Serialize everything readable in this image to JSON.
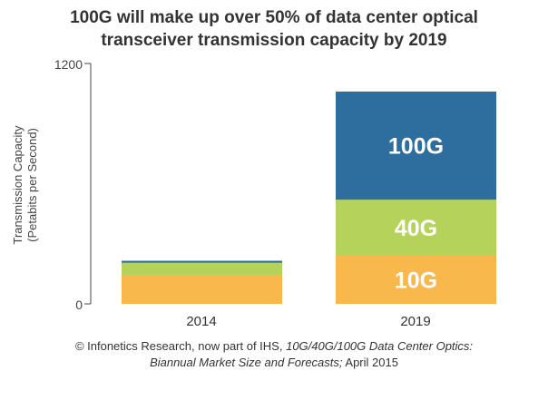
{
  "chart_data": {
    "type": "bar",
    "stacked": true,
    "title": [
      "100G will make up over 50% of data center optical",
      "transceiver transmission capacity by 2019"
    ],
    "ylabel": [
      "Transmission Capacity",
      "(Petabits per Second)"
    ],
    "categories": [
      "2014",
      "2019"
    ],
    "y_ticks": [
      "0",
      "1200"
    ],
    "ylim": [
      0,
      1200
    ],
    "series": [
      {
        "name": "10G",
        "color": "#f9b84b",
        "values": [
          145,
          240
        ]
      },
      {
        "name": "40G",
        "color": "#b5d25a",
        "values": [
          60,
          280
        ]
      },
      {
        "name": "100G",
        "color": "#2d6e9f",
        "values": [
          10,
          540
        ]
      }
    ],
    "grid": false,
    "legend": "none (labels inside 2019 segments)"
  },
  "source": {
    "part1": "© Infonetics Research, now part of IHS, ",
    "part2_italic": "10G/40G/100G Data Center Optics:",
    "part3_italic": "Biannual Market Size and Forecasts;",
    "part4": " April 2015"
  }
}
